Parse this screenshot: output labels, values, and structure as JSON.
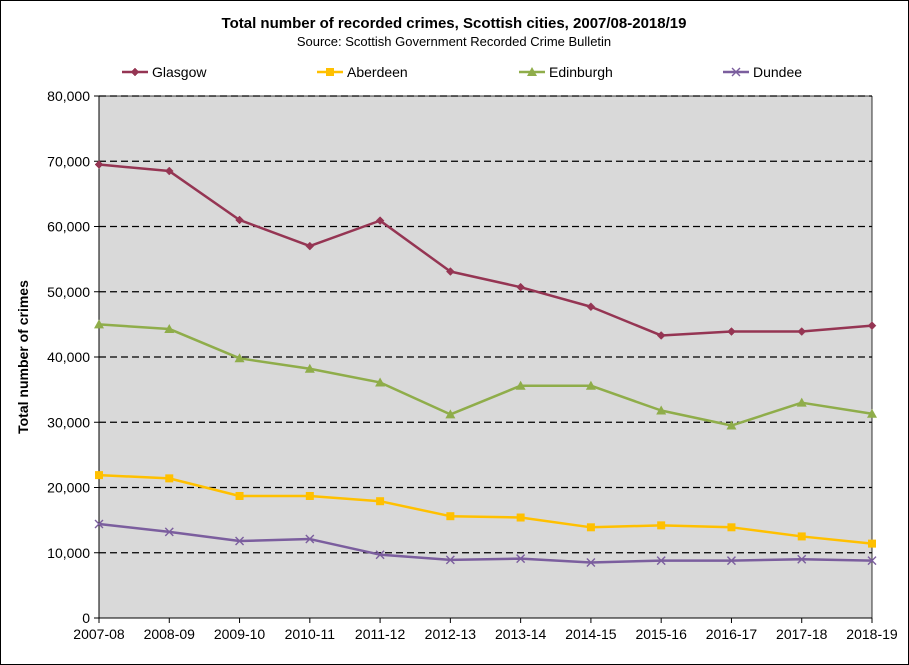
{
  "chart_data": {
    "type": "line",
    "title": "Total number of recorded crimes, Scottish cities, 2007/08-2018/19",
    "subtitle": "Source:  Scottish Government  Recorded Crime Bulletin",
    "xlabel": "",
    "ylabel": "Total number of crimes",
    "ylim": [
      0,
      80000
    ],
    "yticks": [
      "0",
      "10,000",
      "20,000",
      "30,000",
      "40,000",
      "50,000",
      "60,000",
      "70,000",
      "80,000"
    ],
    "grid": "horizontal dashed",
    "legend_position": "top",
    "plot_background": "#d9d9d9",
    "categories": [
      "2007-08",
      "2008-09",
      "2009-10",
      "2010-11",
      "2011-12",
      "2012-13",
      "2013-14",
      "2014-15",
      "2015-16",
      "2016-17",
      "2017-18",
      "2018-19"
    ],
    "series": [
      {
        "name": "Glasgow",
        "color": "#953553",
        "marker": "diamond",
        "values": [
          69500,
          68500,
          61000,
          57000,
          60900,
          53100,
          50700,
          47700,
          43300,
          43900,
          43900,
          44800
        ]
      },
      {
        "name": "Aberdeen",
        "color": "#ffc000",
        "marker": "square",
        "values": [
          21900,
          21400,
          18700,
          18700,
          17900,
          15600,
          15400,
          13900,
          14200,
          13900,
          12500,
          11400
        ]
      },
      {
        "name": "Edinburgh",
        "color": "#8fad4a",
        "marker": "triangle",
        "values": [
          45000,
          44300,
          39800,
          38200,
          36100,
          31200,
          35600,
          35600,
          31800,
          29500,
          33000,
          31300
        ]
      },
      {
        "name": "Dundee",
        "color": "#7b5e9e",
        "marker": "x",
        "values": [
          14400,
          13200,
          11800,
          12100,
          9700,
          8900,
          9100,
          8500,
          8800,
          8800,
          9000,
          8800
        ]
      }
    ]
  }
}
